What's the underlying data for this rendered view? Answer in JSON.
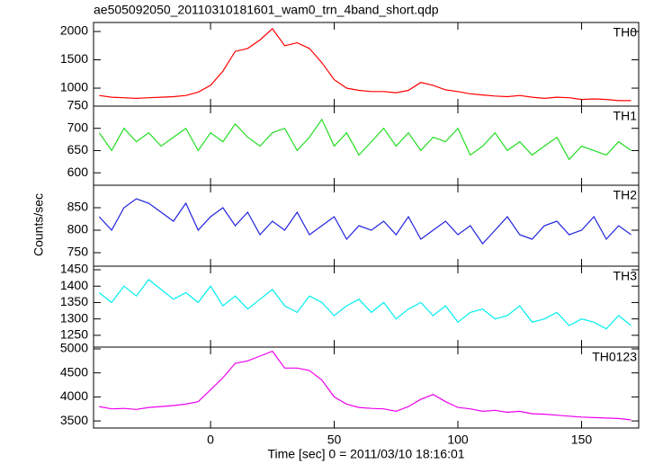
{
  "title": "ae505092050_20110310181601_wam0_trn_4band_short.qdp",
  "ylabel": "Counts/sec",
  "xlabel": "Time [sec] 0 = 2011/03/10 18:16:01",
  "chart_data": [
    {
      "type": "line",
      "label": "TH0",
      "color": "#ff0000",
      "x": [
        -45,
        -40,
        -35,
        -30,
        -25,
        -20,
        -15,
        -10,
        -5,
        0,
        5,
        10,
        15,
        20,
        25,
        30,
        35,
        40,
        45,
        50,
        55,
        60,
        65,
        70,
        75,
        80,
        85,
        90,
        95,
        100,
        105,
        110,
        115,
        120,
        125,
        130,
        135,
        140,
        145,
        150,
        155,
        160,
        165,
        170
      ],
      "values": [
        870,
        840,
        830,
        820,
        830,
        840,
        850,
        870,
        930,
        1050,
        1300,
        1650,
        1700,
        1850,
        2050,
        1750,
        1800,
        1700,
        1450,
        1150,
        1000,
        960,
        940,
        940,
        920,
        960,
        1100,
        1050,
        970,
        940,
        900,
        880,
        860,
        850,
        870,
        840,
        820,
        840,
        830,
        800,
        810,
        800,
        780,
        780
      ],
      "xlim": [
        -47.3,
        173.1
      ],
      "xticks": [
        0,
        50,
        100,
        150
      ],
      "ylim": [
        683,
        2159
      ],
      "yticks": [
        1000,
        1500,
        2000
      ]
    },
    {
      "type": "line",
      "label": "TH1",
      "color": "#22dd22",
      "x": [
        -45,
        -40,
        -35,
        -30,
        -25,
        -20,
        -15,
        -10,
        -5,
        0,
        5,
        10,
        15,
        20,
        25,
        30,
        35,
        40,
        45,
        50,
        55,
        60,
        65,
        70,
        75,
        80,
        85,
        90,
        95,
        100,
        105,
        110,
        115,
        120,
        125,
        130,
        135,
        140,
        145,
        150,
        155,
        160,
        165,
        170
      ],
      "values": [
        690,
        650,
        700,
        670,
        690,
        660,
        680,
        700,
        650,
        690,
        670,
        710,
        680,
        660,
        690,
        700,
        650,
        680,
        720,
        660,
        690,
        640,
        670,
        700,
        660,
        690,
        650,
        680,
        670,
        700,
        640,
        660,
        690,
        650,
        670,
        640,
        660,
        680,
        630,
        660,
        650,
        640,
        670,
        650
      ],
      "xlim": [
        -47.3,
        173.1
      ],
      "xticks": [
        0,
        50,
        100,
        150
      ],
      "ylim": [
        572,
        750
      ],
      "yticks": [
        600,
        650,
        700,
        750
      ]
    },
    {
      "type": "line",
      "label": "TH2",
      "color": "#2222dd",
      "x": [
        -45,
        -40,
        -35,
        -30,
        -25,
        -20,
        -15,
        -10,
        -5,
        0,
        5,
        10,
        15,
        20,
        25,
        30,
        35,
        40,
        45,
        50,
        55,
        60,
        65,
        70,
        75,
        80,
        85,
        90,
        95,
        100,
        105,
        110,
        115,
        120,
        125,
        130,
        135,
        140,
        145,
        150,
        155,
        160,
        165,
        170
      ],
      "values": [
        830,
        800,
        850,
        870,
        860,
        840,
        820,
        860,
        800,
        830,
        850,
        810,
        840,
        790,
        820,
        800,
        840,
        790,
        810,
        830,
        780,
        810,
        800,
        820,
        790,
        830,
        780,
        800,
        820,
        790,
        810,
        770,
        800,
        830,
        790,
        780,
        810,
        820,
        790,
        800,
        830,
        780,
        810,
        790
      ],
      "xlim": [
        -47.3,
        173.1
      ],
      "xticks": [
        0,
        50,
        100,
        150
      ],
      "ylim": [
        720,
        900
      ],
      "yticks": [
        750,
        800,
        850
      ]
    },
    {
      "type": "line",
      "label": "TH3",
      "color": "#00eeee",
      "x": [
        -45,
        -40,
        -35,
        -30,
        -25,
        -20,
        -15,
        -10,
        -5,
        0,
        5,
        10,
        15,
        20,
        25,
        30,
        35,
        40,
        45,
        50,
        55,
        60,
        65,
        70,
        75,
        80,
        85,
        90,
        95,
        100,
        105,
        110,
        115,
        120,
        125,
        130,
        135,
        140,
        145,
        150,
        155,
        160,
        165,
        170
      ],
      "values": [
        1380,
        1350,
        1400,
        1370,
        1420,
        1390,
        1360,
        1380,
        1350,
        1400,
        1340,
        1370,
        1330,
        1360,
        1390,
        1340,
        1320,
        1370,
        1350,
        1310,
        1340,
        1360,
        1320,
        1350,
        1300,
        1330,
        1350,
        1310,
        1340,
        1290,
        1320,
        1330,
        1300,
        1310,
        1340,
        1290,
        1300,
        1320,
        1280,
        1300,
        1290,
        1270,
        1310,
        1280
      ],
      "xlim": [
        -47.3,
        173.1
      ],
      "xticks": [
        0,
        50,
        100,
        150
      ],
      "ylim": [
        1214,
        1461
      ],
      "yticks": [
        1250,
        1300,
        1350,
        1400,
        1450
      ]
    },
    {
      "type": "line",
      "label": "TH0123",
      "color": "#ee00ee",
      "x": [
        -45,
        -40,
        -35,
        -30,
        -25,
        -20,
        -15,
        -10,
        -5,
        0,
        5,
        10,
        15,
        20,
        25,
        30,
        35,
        40,
        45,
        50,
        55,
        60,
        65,
        70,
        75,
        80,
        85,
        90,
        95,
        100,
        105,
        110,
        115,
        120,
        125,
        130,
        135,
        140,
        145,
        150,
        155,
        160,
        165,
        170
      ],
      "values": [
        3800,
        3750,
        3760,
        3740,
        3780,
        3800,
        3820,
        3850,
        3900,
        4150,
        4400,
        4700,
        4750,
        4850,
        4950,
        4600,
        4600,
        4550,
        4350,
        4000,
        3850,
        3780,
        3760,
        3750,
        3700,
        3800,
        3950,
        4050,
        3900,
        3780,
        3750,
        3700,
        3720,
        3680,
        3700,
        3650,
        3640,
        3620,
        3600,
        3580,
        3570,
        3560,
        3550,
        3520
      ],
      "xlim": [
        -47.3,
        173.1
      ],
      "xticks": [
        0,
        50,
        100,
        150
      ],
      "ylim": [
        3352,
        5037
      ],
      "yticks": [
        3500,
        4000,
        4500,
        5000
      ]
    }
  ]
}
